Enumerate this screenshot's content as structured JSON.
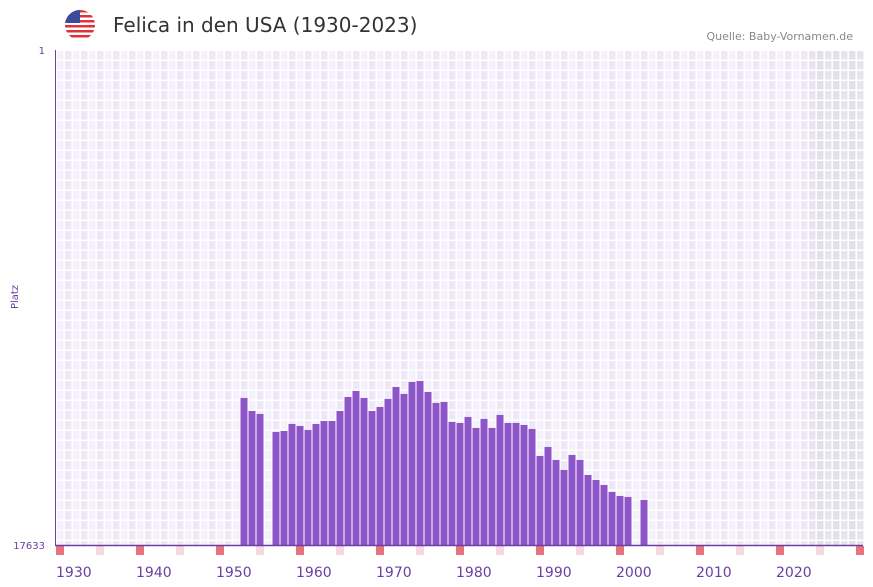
{
  "header": {
    "title": "Felica in den USA (1930-2023)",
    "source": "Quelle: Baby-Vornamen.de",
    "flag_icon": "us-flag-icon"
  },
  "colors": {
    "bar": "#8e55c8",
    "axis": "#6a3fa3",
    "marker_strong": "#e8737c",
    "marker_light": "#f6d9e0"
  },
  "chart_data": {
    "type": "bar",
    "title": "Felica in den USA (1930-2023)",
    "xlabel": "",
    "ylabel": "Platz",
    "ylim": [
      17633,
      1
    ],
    "xlim": [
      1930,
      2030
    ],
    "y_ticks": [
      "1",
      "17633"
    ],
    "x_ticks": [
      "1930",
      "1940",
      "1950",
      "1960",
      "1970",
      "1980",
      "1990",
      "2000",
      "2010",
      "2020"
    ],
    "x": [
      1953,
      1954,
      1955,
      1957,
      1958,
      1959,
      1960,
      1961,
      1962,
      1963,
      1964,
      1965,
      1966,
      1967,
      1968,
      1969,
      1970,
      1971,
      1972,
      1973,
      1974,
      1975,
      1976,
      1977,
      1978,
      1979,
      1980,
      1981,
      1982,
      1983,
      1984,
      1985,
      1986,
      1987,
      1988,
      1989,
      1990,
      1991,
      1992,
      1993,
      1994,
      1995,
      1996,
      1997,
      1998,
      1999,
      2000,
      2001,
      2003
    ],
    "values": [
      12396,
      12859,
      12966,
      13607,
      13571,
      13322,
      13393,
      13536,
      13322,
      13215,
      13215,
      12859,
      12360,
      12146,
      12396,
      12859,
      12716,
      12431,
      12004,
      12253,
      11826,
      11790,
      12182,
      12574,
      12538,
      13251,
      13286,
      13073,
      13464,
      13144,
      13464,
      13001,
      13286,
      13286,
      13358,
      13500,
      14462,
      14141,
      14604,
      14960,
      14426,
      14604,
      15139,
      15317,
      15495,
      15744,
      15887,
      15922,
      16029
    ],
    "grid": true,
    "data_end_year": 2023
  }
}
